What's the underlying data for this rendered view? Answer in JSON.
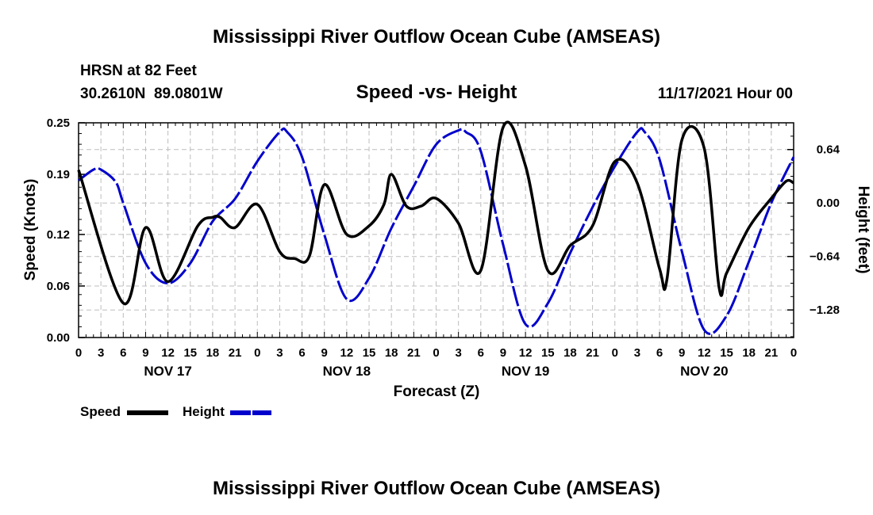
{
  "chart_data": {
    "type": "line",
    "title": "Mississippi River Outflow Ocean Cube (AMSEAS)",
    "station": "HRSN at 82 Feet",
    "coords": "30.2610N  89.0801W",
    "subtitle": "Speed -vs- Height",
    "date": "11/17/2021 Hour 00",
    "footer_title": "Mississippi River Outflow Ocean Cube (AMSEAS)",
    "xlabel": "Forecast (Z)",
    "ylabel_left": "Speed (Knots)",
    "ylabel_right": "Height (feet)",
    "x_range": [
      0,
      96
    ],
    "y_left_range": [
      0,
      0.25
    ],
    "y_right_range": [
      -1.61,
      0.96
    ],
    "x_ticks": [
      0,
      3,
      6,
      9,
      12,
      15,
      18,
      21,
      24,
      27,
      30,
      33,
      36,
      39,
      42,
      45,
      48,
      51,
      54,
      57,
      60,
      63,
      66,
      69,
      72,
      75,
      78,
      81,
      84,
      87,
      90,
      93,
      96
    ],
    "x_tick_labels": [
      "0",
      "3",
      "6",
      "9",
      "12",
      "15",
      "18",
      "21",
      "0",
      "3",
      "6",
      "9",
      "12",
      "15",
      "18",
      "21",
      "0",
      "3",
      "6",
      "9",
      "12",
      "15",
      "18",
      "21",
      "0",
      "3",
      "6",
      "9",
      "12",
      "15",
      "18",
      "21",
      "0"
    ],
    "day_labels": [
      {
        "hour": 12,
        "label": "NOV 17"
      },
      {
        "hour": 36,
        "label": "NOV 18"
      },
      {
        "hour": 60,
        "label": "NOV 19"
      },
      {
        "hour": 84,
        "label": "NOV 20"
      }
    ],
    "y_left_ticks": [
      0.0,
      0.06,
      0.12,
      0.19,
      0.25
    ],
    "y_left_tick_labels": [
      "0.00",
      "0.06",
      "0.12",
      "0.19",
      "0.25"
    ],
    "y_right_ticks": [
      0.64,
      0.0,
      -0.64,
      -1.28
    ],
    "y_right_tick_labels": [
      "0.64",
      "0.00",
      "−0.64",
      "−1.28"
    ],
    "grid": true,
    "series": [
      {
        "name": "Speed",
        "axis": "left",
        "color": "#000000",
        "x": [
          0,
          6,
          9,
          12,
          16,
          18,
          19,
          21,
          24,
          27,
          29,
          31,
          33,
          36,
          39,
          41,
          42,
          44,
          46,
          48,
          51,
          54,
          57,
          60,
          63,
          66,
          69,
          72,
          75,
          78,
          79,
          81,
          84,
          86,
          87,
          90,
          93,
          95,
          96
        ],
        "values": [
          0.195,
          0.04,
          0.128,
          0.065,
          0.13,
          0.14,
          0.14,
          0.128,
          0.155,
          0.1,
          0.092,
          0.095,
          0.178,
          0.12,
          0.13,
          0.155,
          0.19,
          0.153,
          0.153,
          0.162,
          0.133,
          0.078,
          0.245,
          0.2,
          0.078,
          0.107,
          0.13,
          0.205,
          0.18,
          0.08,
          0.068,
          0.23,
          0.22,
          0.058,
          0.075,
          0.128,
          0.162,
          0.182,
          0.18
        ]
      },
      {
        "name": "Height",
        "axis": "right",
        "color": "#0000cc",
        "x": [
          0,
          2,
          3,
          5,
          6,
          9,
          12,
          15,
          18,
          21,
          24,
          27,
          28,
          30,
          33,
          36,
          39,
          42,
          45,
          48,
          51,
          52,
          54,
          57,
          60,
          63,
          66,
          69,
          72,
          75,
          76,
          78,
          81,
          84,
          87,
          90,
          93,
          96
        ],
        "values": [
          0.27,
          0.4,
          0.4,
          0.25,
          0.0,
          -0.72,
          -0.96,
          -0.72,
          -0.22,
          0.05,
          0.5,
          0.85,
          0.85,
          0.55,
          -0.38,
          -1.15,
          -0.9,
          -0.3,
          0.2,
          0.7,
          0.87,
          0.85,
          0.62,
          -0.5,
          -1.45,
          -1.2,
          -0.6,
          -0.05,
          0.44,
          0.85,
          0.85,
          0.52,
          -0.58,
          -1.52,
          -1.35,
          -0.7,
          0.0,
          0.55
        ]
      }
    ],
    "legend": [
      {
        "label": "Speed",
        "color": "#000000",
        "style": "solid"
      },
      {
        "label": "Height",
        "color": "#0000cc",
        "style": "dashed"
      }
    ]
  }
}
